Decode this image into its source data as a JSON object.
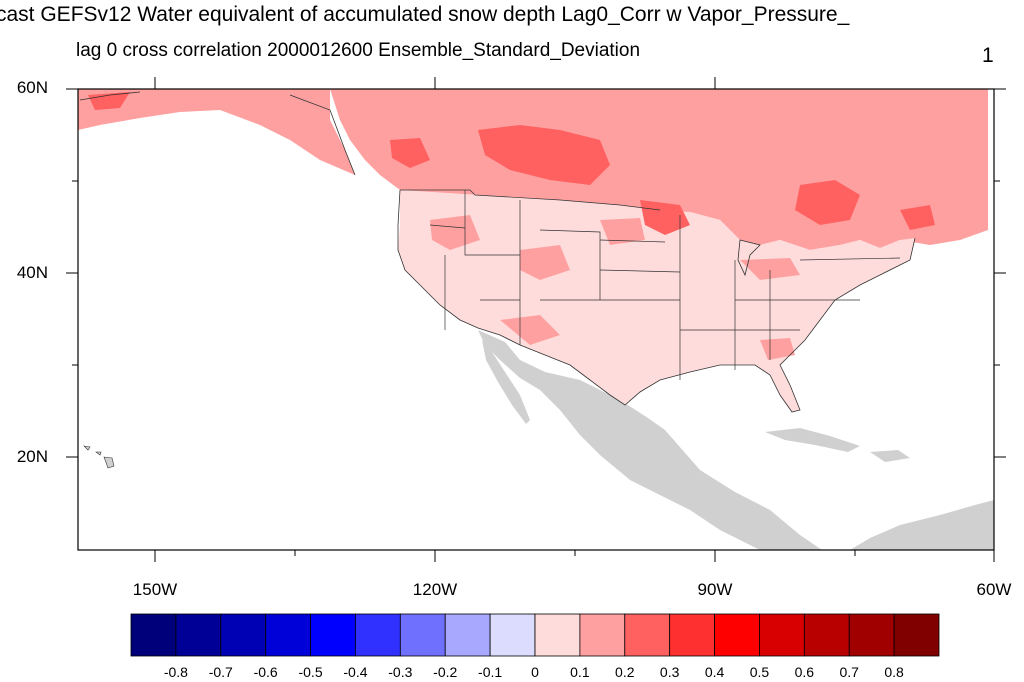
{
  "header": {
    "title": "cast GEFSv12 Water equivalent of accumulated snow depth Lag0_Corr w Vapor_Pressure_",
    "subtitle": "lag 0 cross correlation 2000012600 Ensemble_Standard_Deviation",
    "corner_value": "1"
  },
  "map": {
    "lat_labels": [
      "60N",
      "40N",
      "20N"
    ],
    "lon_labels": [
      "150W",
      "120W",
      "90W",
      "60W"
    ],
    "extent": {
      "lon_min": -160,
      "lon_max": -60,
      "lat_min": 10,
      "lat_max": 60
    },
    "land_missing_color": "#d0d0d0",
    "ocean_color": "#ffffff"
  },
  "colorbar": {
    "labels": [
      "-0.8",
      "-0.7",
      "-0.6",
      "-0.5",
      "-0.4",
      "-0.3",
      "-0.2",
      "-0.1",
      "0",
      "0.1",
      "0.2",
      "0.3",
      "0.4",
      "0.5",
      "0.6",
      "0.7",
      "0.8"
    ],
    "colors": [
      "#00007a",
      "#000096",
      "#0000b5",
      "#0000d8",
      "#0000ff",
      "#3030ff",
      "#7070ff",
      "#a8a8ff",
      "#dcdcff",
      "#ffdcdc",
      "#ffa0a0",
      "#ff6060",
      "#ff3030",
      "#ff0000",
      "#d80000",
      "#b80000",
      "#a00000",
      "#800000"
    ]
  }
}
